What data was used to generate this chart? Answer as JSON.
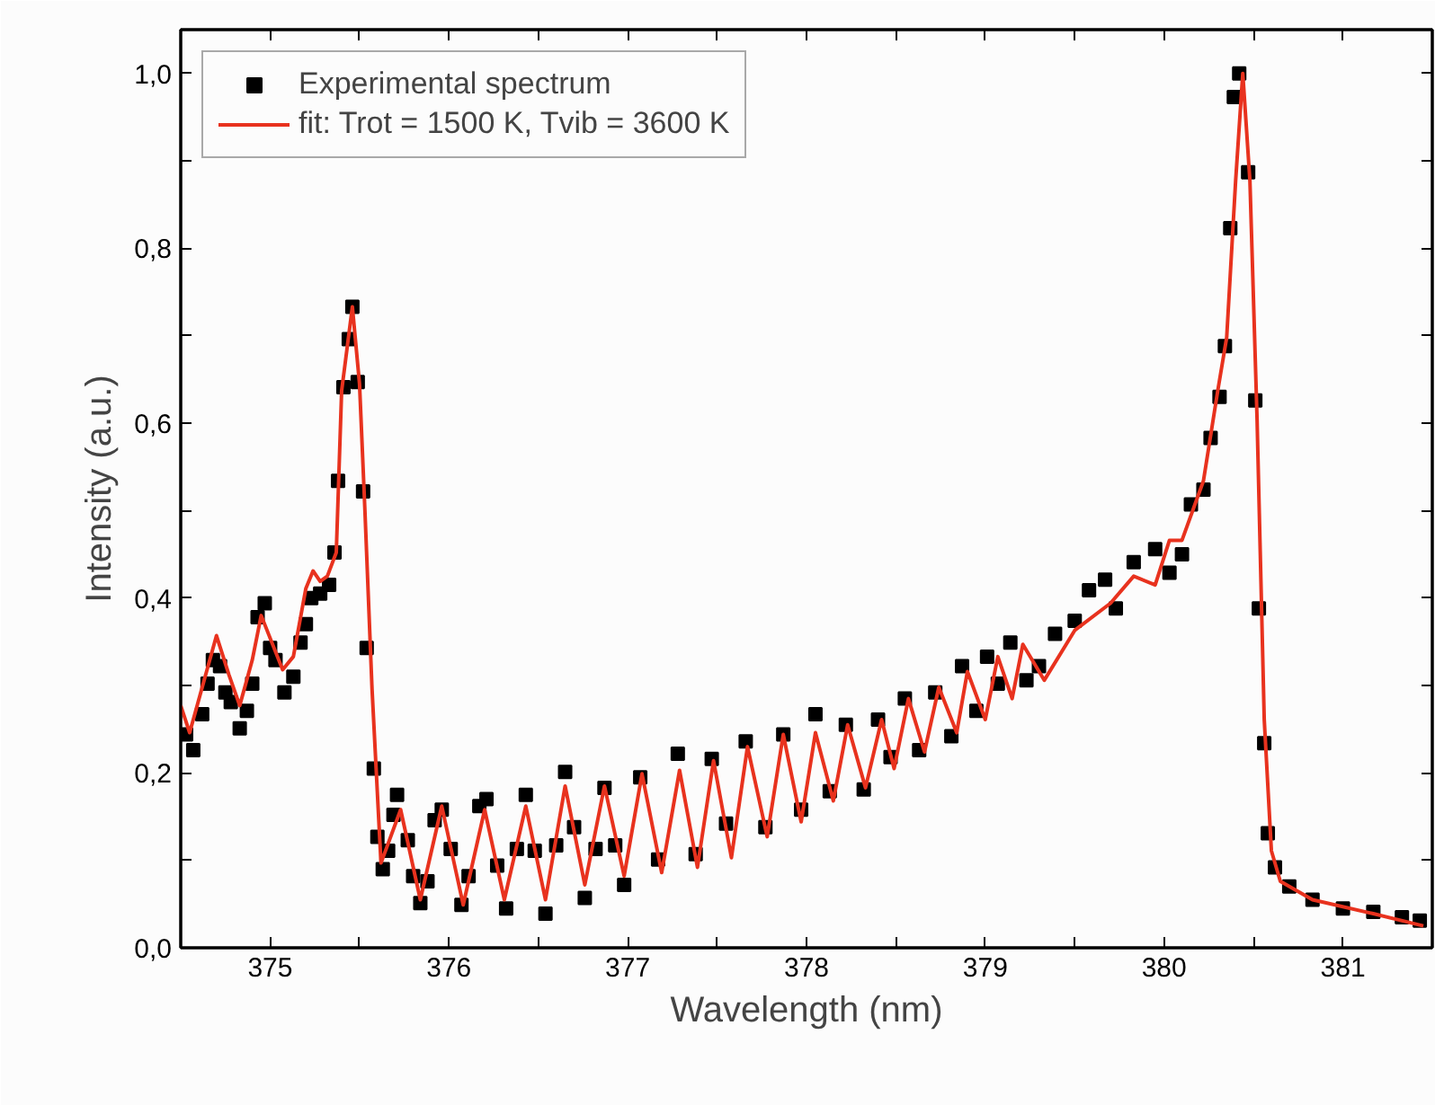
{
  "chart_data": {
    "type": "scatter",
    "xlabel": "Wavelength (nm)",
    "ylabel": "Intensity (a.u.)",
    "xlim": [
      374.5,
      381.5
    ],
    "ylim": [
      0,
      1.05
    ],
    "xticks": [
      375,
      {
        "value": 375.5,
        "label": null
      },
      376,
      {
        "value": 376.5,
        "label": null
      },
      377,
      {
        "value": 377.5,
        "label": null
      },
      378,
      {
        "value": 378.5,
        "label": null
      },
      379,
      {
        "value": 379.5,
        "label": null
      },
      380,
      {
        "value": 380.5,
        "label": null
      },
      381
    ],
    "yticks": [
      {
        "value": 0,
        "label": "0,0"
      },
      {
        "value": 0.1,
        "label": null
      },
      {
        "value": 0.2,
        "label": "0,2"
      },
      {
        "value": 0.3,
        "label": null
      },
      {
        "value": 0.4,
        "label": "0,4"
      },
      {
        "value": 0.5,
        "label": null
      },
      {
        "value": 0.6,
        "label": "0,6"
      },
      {
        "value": 0.7,
        "label": null
      },
      {
        "value": 0.8,
        "label": "0,8"
      },
      {
        "value": 0.9,
        "label": null
      },
      {
        "value": 1.0,
        "label": "1,0"
      }
    ],
    "grid": false,
    "legend": "top left",
    "series": [
      {
        "name": "Experimental spectrum",
        "marker": "square",
        "color": "#000000",
        "x": [
          374.53,
          374.57,
          374.62,
          374.65,
          374.68,
          374.72,
          374.75,
          374.78,
          374.83,
          374.87,
          374.9,
          374.93,
          374.97,
          375.0,
          375.03,
          375.08,
          375.13,
          375.17,
          375.2,
          375.23,
          375.28,
          375.33,
          375.36,
          375.38,
          375.41,
          375.44,
          375.46,
          375.49,
          375.52,
          375.54,
          375.58,
          375.6,
          375.63,
          375.66,
          375.69,
          375.71,
          375.77,
          375.8,
          375.84,
          375.88,
          375.92,
          375.96,
          376.01,
          376.07,
          376.11,
          376.17,
          376.21,
          376.27,
          376.32,
          376.38,
          376.43,
          376.48,
          376.54,
          376.6,
          376.65,
          376.7,
          376.76,
          376.82,
          376.87,
          376.93,
          376.98,
          377.07,
          377.17,
          377.28,
          377.38,
          377.47,
          377.55,
          377.66,
          377.77,
          377.87,
          377.97,
          378.05,
          378.13,
          378.22,
          378.32,
          378.4,
          378.47,
          378.55,
          378.63,
          378.72,
          378.81,
          378.87,
          378.95,
          379.01,
          379.07,
          379.14,
          379.23,
          379.3,
          379.39,
          379.5,
          379.58,
          379.67,
          379.73,
          379.83,
          379.95,
          380.03,
          380.1,
          380.15,
          380.22,
          380.26,
          380.31,
          380.34,
          380.37,
          380.39,
          380.42,
          380.47,
          380.51,
          380.53,
          380.56,
          380.58,
          380.62,
          380.7,
          380.83,
          381.0,
          381.17,
          381.33,
          381.43
        ],
        "values": [
          0.244,
          0.226,
          0.267,
          0.302,
          0.329,
          0.322,
          0.292,
          0.281,
          0.251,
          0.271,
          0.302,
          0.378,
          0.394,
          0.343,
          0.329,
          0.292,
          0.31,
          0.349,
          0.37,
          0.4,
          0.405,
          0.415,
          0.452,
          0.534,
          0.641,
          0.696,
          0.733,
          0.647,
          0.522,
          0.343,
          0.205,
          0.127,
          0.09,
          0.111,
          0.152,
          0.175,
          0.123,
          0.082,
          0.051,
          0.076,
          0.146,
          0.158,
          0.113,
          0.049,
          0.082,
          0.162,
          0.17,
          0.094,
          0.045,
          0.113,
          0.175,
          0.111,
          0.039,
          0.117,
          0.201,
          0.138,
          0.057,
          0.113,
          0.183,
          0.117,
          0.072,
          0.195,
          0.101,
          0.222,
          0.107,
          0.216,
          0.142,
          0.236,
          0.138,
          0.244,
          0.158,
          0.267,
          0.179,
          0.255,
          0.181,
          0.261,
          0.218,
          0.285,
          0.226,
          0.292,
          0.242,
          0.322,
          0.271,
          0.333,
          0.302,
          0.349,
          0.306,
          0.322,
          0.359,
          0.374,
          0.409,
          0.421,
          0.388,
          0.441,
          0.456,
          0.429,
          0.45,
          0.507,
          0.524,
          0.583,
          0.63,
          0.688,
          0.823,
          0.973,
          1.0,
          0.887,
          0.626,
          0.388,
          0.234,
          0.131,
          0.092,
          0.07,
          0.055,
          0.045,
          0.041,
          0.035,
          0.031
        ]
      },
      {
        "name": "fit: Trot = 1500 K, Tvib = 3600 K",
        "type": "line",
        "marker": "none",
        "line_style": "solid",
        "color": "#e8321e",
        "x": [
          374.5,
          374.55,
          374.7,
          374.77,
          374.83,
          374.9,
          374.95,
          375.07,
          375.13,
          375.2,
          375.24,
          375.28,
          375.32,
          375.37,
          375.4,
          375.46,
          375.5,
          375.53,
          375.57,
          375.62,
          375.73,
          375.84,
          375.96,
          376.08,
          376.2,
          376.31,
          376.43,
          376.54,
          376.65,
          376.76,
          376.87,
          376.98,
          377.08,
          377.19,
          377.29,
          377.39,
          377.48,
          377.58,
          377.67,
          377.78,
          377.87,
          377.97,
          378.05,
          378.15,
          378.23,
          378.33,
          378.42,
          378.49,
          378.57,
          378.66,
          378.74,
          378.84,
          378.9,
          379.0,
          379.07,
          379.15,
          379.21,
          379.33,
          379.5,
          379.7,
          379.83,
          379.95,
          380.03,
          380.1,
          380.22,
          380.3,
          380.35,
          380.4,
          380.44,
          380.48,
          380.52,
          380.56,
          380.6,
          380.65,
          380.83,
          381.17,
          381.45
        ],
        "values": [
          0.277,
          0.246,
          0.357,
          0.312,
          0.277,
          0.329,
          0.38,
          0.318,
          0.333,
          0.411,
          0.431,
          0.419,
          0.425,
          0.452,
          0.637,
          0.733,
          0.645,
          0.501,
          0.296,
          0.097,
          0.158,
          0.055,
          0.162,
          0.049,
          0.158,
          0.055,
          0.162,
          0.055,
          0.185,
          0.072,
          0.185,
          0.082,
          0.199,
          0.086,
          0.203,
          0.092,
          0.214,
          0.103,
          0.23,
          0.127,
          0.244,
          0.144,
          0.246,
          0.168,
          0.255,
          0.183,
          0.261,
          0.205,
          0.285,
          0.224,
          0.298,
          0.246,
          0.316,
          0.261,
          0.333,
          0.285,
          0.347,
          0.306,
          0.363,
          0.394,
          0.425,
          0.415,
          0.466,
          0.466,
          0.534,
          0.637,
          0.698,
          0.877,
          1.0,
          0.877,
          0.604,
          0.261,
          0.111,
          0.076,
          0.055,
          0.039,
          0.025
        ]
      }
    ]
  }
}
